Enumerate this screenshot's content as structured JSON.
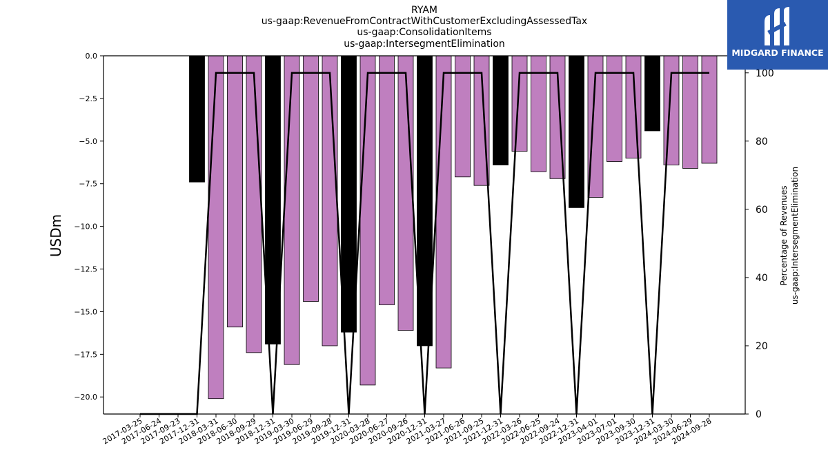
{
  "header": {
    "title_lines": [
      "RYAM",
      "us-gaap:RevenueFromContractWithCustomerExcludingAssessedTax",
      "us-gaap:ConsolidationItems",
      "us-gaap:IntersegmentElimination"
    ]
  },
  "logo": {
    "text": "MIDGARD FINANCE",
    "color": "#2a5ab0"
  },
  "chart_data": {
    "type": "bar",
    "ylabel": "USDm",
    "y2label_lines": [
      "Percentage of Revenues",
      "us-gaap:IntersegmentElimination"
    ],
    "ylim": [
      -21,
      0
    ],
    "y2lim": [
      0,
      105
    ],
    "yticks": [
      0.0,
      -2.5,
      -5.0,
      -7.5,
      -10.0,
      -12.5,
      -15.0,
      -17.5,
      -20.0
    ],
    "ytick_labels": [
      "0.0",
      "−2.5",
      "−5.0",
      "−7.5",
      "−10.0",
      "−12.5",
      "−15.0",
      "−17.5",
      "−20.0"
    ],
    "y2ticks": [
      0,
      20,
      40,
      60,
      80,
      100
    ],
    "y2tick_labels": [
      "0",
      "20",
      "40",
      "60",
      "80",
      "100"
    ],
    "categories": [
      "2017-03-25",
      "2017-06-24",
      "2017-09-23",
      "2017-12-31",
      "2018-03-31",
      "2018-06-30",
      "2018-09-29",
      "2018-12-31",
      "2019-03-30",
      "2019-06-29",
      "2019-09-28",
      "2019-12-31",
      "2020-03-28",
      "2020-06-27",
      "2020-09-26",
      "2020-12-31",
      "2021-03-27",
      "2021-06-26",
      "2021-09-25",
      "2021-12-31",
      "2022-03-26",
      "2022-06-25",
      "2022-09-24",
      "2022-12-31",
      "2023-04-01",
      "2023-07-01",
      "2023-09-30",
      "2023-12-31",
      "2024-03-30",
      "2024-06-29",
      "2024-09-28"
    ],
    "values": [
      null,
      null,
      null,
      -7.4,
      -20.1,
      -15.9,
      -17.4,
      -16.9,
      -18.1,
      -14.4,
      -17.0,
      -16.2,
      -19.3,
      -14.6,
      -16.1,
      -17.0,
      -18.3,
      -7.1,
      -7.6,
      -6.4,
      -5.6,
      -6.8,
      -7.2,
      -8.9,
      -8.3,
      -6.2,
      -6.0,
      -4.4,
      -6.4,
      -6.6,
      -6.3
    ],
    "bar_type": [
      "",
      "",
      "",
      "annual",
      "quarter",
      "quarter",
      "quarter",
      "annual",
      "quarter",
      "quarter",
      "quarter",
      "annual",
      "quarter",
      "quarter",
      "quarter",
      "annual",
      "quarter",
      "quarter",
      "quarter",
      "annual",
      "quarter",
      "quarter",
      "quarter",
      "annual",
      "quarter",
      "quarter",
      "quarter",
      "annual",
      "quarter",
      "quarter",
      "quarter"
    ],
    "percent": [
      0,
      0,
      0,
      0,
      100,
      100,
      100,
      0,
      100,
      100,
      100,
      0,
      100,
      100,
      100,
      0,
      100,
      100,
      100,
      0,
      100,
      100,
      100,
      0,
      100,
      100,
      100,
      0,
      100,
      100,
      100
    ],
    "colors": {
      "annual": "#000000",
      "quarter": "#bf7fbf",
      "line": "#000000"
    },
    "grid": false
  }
}
